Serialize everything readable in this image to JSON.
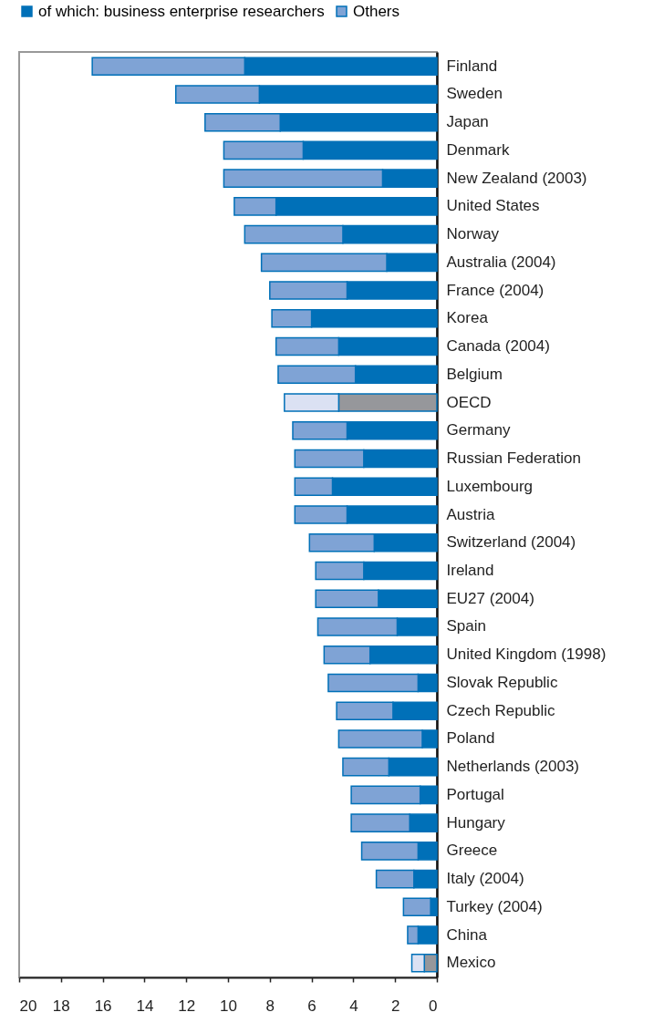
{
  "chart_data": {
    "type": "bar",
    "orientation": "horizontal",
    "stacked": true,
    "legend": "top left",
    "grid": false,
    "categories": [
      "Finland",
      "Sweden",
      "Japan",
      "Denmark",
      "New Zealand (2003)",
      "United States",
      "Norway",
      "Australia (2004)",
      "France (2004)",
      "Korea",
      "Canada (2004)",
      "Belgium",
      "OECD",
      "Germany",
      "Russian Federation",
      "Luxembourg",
      "Austria",
      "Switzerland (2004)",
      "Ireland",
      "EU27 (2004)",
      "Spain",
      "United Kingdom (1998)",
      "Slovak Republic",
      "Czech Republic",
      "Poland",
      "Netherlands (2003)",
      "Portugal",
      "Hungary",
      "Greece",
      "Italy (2004)",
      "Turkey (2004)",
      "China",
      "Mexico"
    ],
    "series": [
      {
        "name": "of which: business enterprise researchers",
        "color": "#0070b8",
        "colors": [
          "#0070b8",
          "#0070b8",
          "#0070b8",
          "#0070b8",
          "#0070b8",
          "#0070b8",
          "#0070b8",
          "#0070b8",
          "#0070b8",
          "#0070b8",
          "#0070b8",
          "#0070b8",
          "#96979b",
          "#0070b8",
          "#0070b8",
          "#0070b8",
          "#0070b8",
          "#0070b8",
          "#0070b8",
          "#0070b8",
          "#0070b8",
          "#0070b8",
          "#0070b8",
          "#0070b8",
          "#0070b8",
          "#0070b8",
          "#0070b8",
          "#0070b8",
          "#0070b8",
          "#0070b8",
          "#0070b8",
          "#0070b8",
          "#96979b"
        ],
        "values": [
          9.2,
          8.5,
          7.5,
          6.4,
          2.6,
          7.7,
          4.5,
          2.4,
          4.3,
          6.0,
          4.7,
          3.9,
          4.7,
          4.3,
          3.5,
          5.0,
          4.3,
          3.0,
          3.5,
          2.8,
          1.9,
          3.2,
          0.9,
          2.1,
          0.7,
          2.3,
          0.8,
          1.3,
          0.9,
          1.1,
          0.3,
          0.9,
          0.6
        ]
      },
      {
        "name": "Others",
        "color": "#7fa3d5",
        "colors": [
          "#7fa3d5",
          "#7fa3d5",
          "#7fa3d5",
          "#7fa3d5",
          "#7fa3d5",
          "#7fa3d5",
          "#7fa3d5",
          "#7fa3d5",
          "#7fa3d5",
          "#7fa3d5",
          "#7fa3d5",
          "#7fa3d5",
          "#dbe1f3",
          "#7fa3d5",
          "#7fa3d5",
          "#7fa3d5",
          "#7fa3d5",
          "#7fa3d5",
          "#7fa3d5",
          "#7fa3d5",
          "#7fa3d5",
          "#7fa3d5",
          "#7fa3d5",
          "#7fa3d5",
          "#7fa3d5",
          "#7fa3d5",
          "#7fa3d5",
          "#7fa3d5",
          "#7fa3d5",
          "#7fa3d5",
          "#7fa3d5",
          "#7fa3d5",
          "#dbe1f3"
        ],
        "values": [
          7.3,
          4.0,
          3.6,
          3.8,
          7.6,
          2.0,
          4.7,
          6.0,
          3.7,
          1.9,
          3.0,
          3.7,
          2.6,
          2.6,
          3.3,
          1.8,
          2.5,
          3.1,
          2.3,
          3.0,
          3.8,
          2.2,
          4.3,
          2.7,
          4.0,
          2.2,
          3.3,
          2.8,
          2.7,
          1.8,
          1.3,
          0.5,
          0.6
        ]
      }
    ],
    "xlim": [
      20,
      0
    ],
    "xticks": [
      20,
      18,
      16,
      14,
      12,
      10,
      8,
      6,
      4,
      2,
      0
    ]
  }
}
